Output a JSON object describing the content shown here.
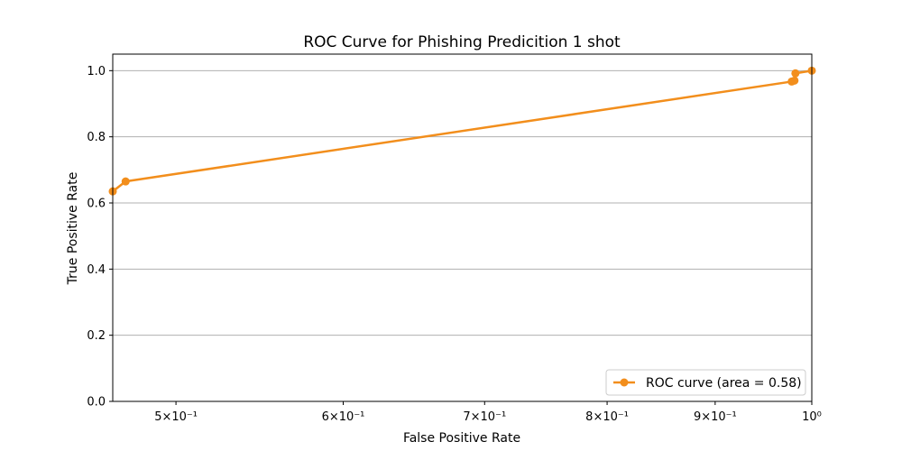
{
  "chart_data": {
    "type": "line",
    "title": "ROC Curve for Phishing Predicition 1 shot",
    "xlabel": "False Positive Rate",
    "ylabel": "True Positive Rate",
    "xscale": "log",
    "xlim": [
      0.4667,
      1.0
    ],
    "ylim": [
      0.0,
      1.05
    ],
    "grid": "horizontal",
    "legend_position": "lower-right",
    "xticks": [
      {
        "value": 0.5,
        "label": "5×10⁻¹"
      },
      {
        "value": 0.6,
        "label": "6×10⁻¹"
      },
      {
        "value": 0.7,
        "label": "7×10⁻¹"
      },
      {
        "value": 0.8,
        "label": "8×10⁻¹"
      },
      {
        "value": 0.9,
        "label": "9×10⁻¹"
      },
      {
        "value": 1.0,
        "label": "10⁰"
      }
    ],
    "yticks": [
      {
        "value": 0.0,
        "label": "0.0"
      },
      {
        "value": 0.2,
        "label": "0.2"
      },
      {
        "value": 0.4,
        "label": "0.4"
      },
      {
        "value": 0.6,
        "label": "0.6"
      },
      {
        "value": 0.8,
        "label": "0.8"
      },
      {
        "value": 1.0,
        "label": "1.0"
      }
    ],
    "series": [
      {
        "name": "ROC curve (area = 0.58)",
        "color": "#f28e1c",
        "x": [
          0.4667,
          0.4733,
          0.9783,
          0.9813,
          0.9823,
          1.0
        ],
        "y": [
          0.635,
          0.665,
          0.967,
          0.97,
          0.992,
          1.0
        ]
      }
    ]
  }
}
